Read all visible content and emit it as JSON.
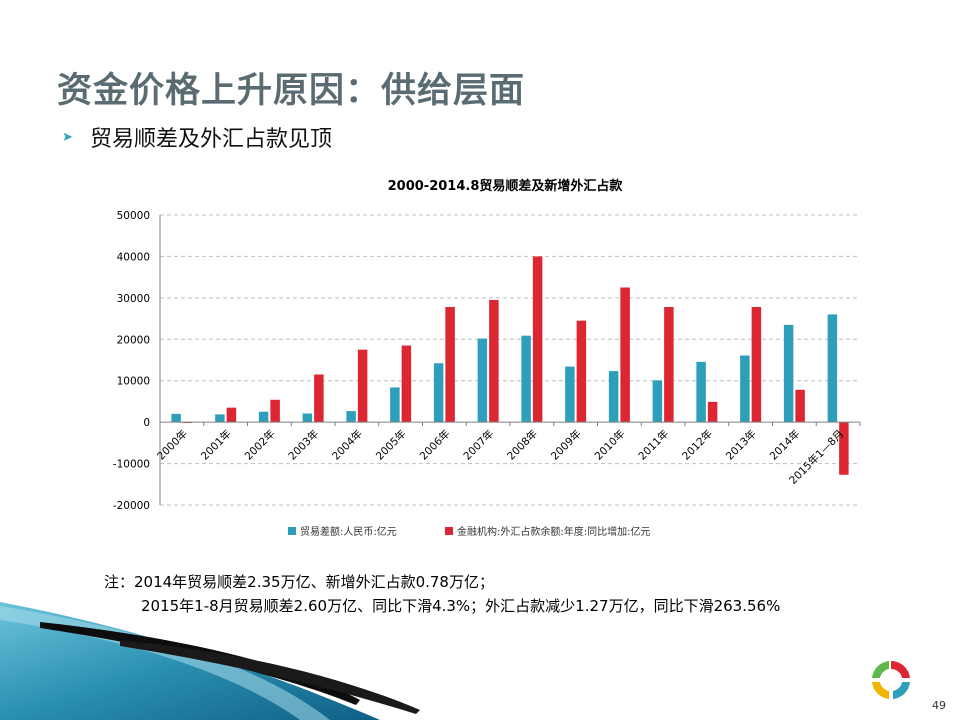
{
  "slide": {
    "title": "资金价格上升原因：供给层面",
    "bullet": "贸易顺差及外汇占款见顶",
    "note_line1": "注：2014年贸易顺差2.35万亿、新增外汇占款0.78万亿；",
    "note_line2": "2015年1-8月贸易顺差2.60万亿、同比下滑4.3%；外汇占款减少1.27万亿，同比下滑263.56%",
    "page_number": "49"
  },
  "chart_data": {
    "type": "bar",
    "title": "2000-2014.8贸易顺差及新增外汇占款",
    "categories": [
      "2000年",
      "2001年",
      "2002年",
      "2003年",
      "2004年",
      "2005年",
      "2006年",
      "2007年",
      "2008年",
      "2009年",
      "2010年",
      "2011年",
      "2012年",
      "2013年",
      "2014年",
      "2015年1—8月"
    ],
    "series": [
      {
        "name": "贸易差额:人民币:亿元",
        "color": "#2e9fbb",
        "values": [
          1996,
          1865,
          2518,
          2092,
          2668,
          8374,
          14218,
          20170,
          20868,
          13411,
          12323,
          10079,
          14558,
          16094,
          23489,
          26000
        ]
      },
      {
        "name": "金融机构:外汇占款余额:年度:同比增加:亿元",
        "color": "#dc2733",
        "values": [
          -200,
          3500,
          5400,
          11500,
          17500,
          18500,
          27800,
          29500,
          40000,
          24500,
          32500,
          27800,
          4900,
          27800,
          7800,
          -12700
        ]
      }
    ],
    "ylim": [
      -20000,
      50000
    ],
    "yticks": [
      -20000,
      -10000,
      0,
      10000,
      20000,
      30000,
      40000,
      50000
    ],
    "grid": true,
    "legend_position": "bottom"
  }
}
